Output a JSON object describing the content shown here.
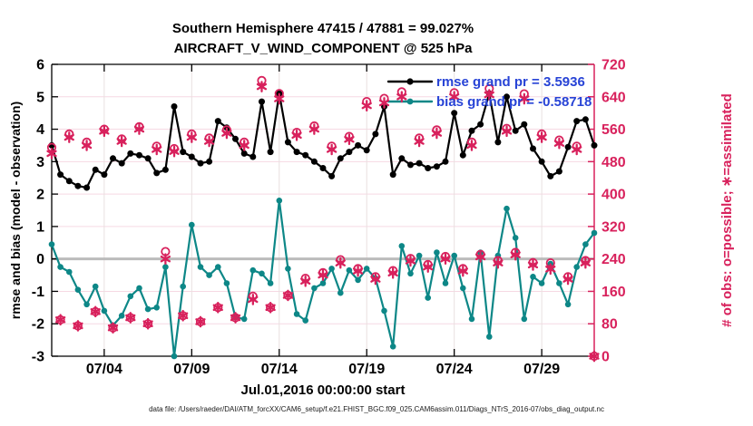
{
  "title": {
    "line1": "Southern Hemisphere 47415 / 47881 = 99.027%",
    "line2": "AIRCRAFT_V_WIND_COMPONENT @ 525 hPa"
  },
  "legend": {
    "rmse_label": "rmse grand pr = 3.5936",
    "bias_label": "bias grand pr = -0.58718"
  },
  "axes": {
    "ylabel_left": "rmse and bias (model - observation)",
    "ylabel_right": "# of obs: o=possible; ∗=assimilated",
    "xlabel": "Jul.01,2016 00:00:00 start"
  },
  "footer": "data file: /Users/raeder/DAI/ATM_forcXX/CAM6_setup/f.e21.FHIST_BGC.f09_025.CAM6assim.011/Diags_NTrS_2016-07/obs_diag_output.nc",
  "colors": {
    "rmse": "#000000",
    "bias": "#0d8787",
    "obs": "#d8215c",
    "legend_text": "#2743d6",
    "grid": "#f6d9e3",
    "grid_vertical": "#e9e0e0",
    "zero_line": "#bbbbbb",
    "axis_black": "#000000"
  },
  "chart_data": {
    "type": "line",
    "title": "Southern Hemisphere 47415 / 47881 = 99.027% | AIRCRAFT_V_WIND_COMPONENT @ 525 hPa",
    "xlabel": "Jul.01,2016 00:00:00 start",
    "ylabel_left": "rmse and bias (model - observation)",
    "ylabel_right": "# of obs: o=possible; *=assimilated",
    "xlim_days": [
      1,
      32
    ],
    "ylim_left": [
      -3,
      6
    ],
    "ylim_right": [
      0,
      720
    ],
    "yticks_left": [
      6,
      5,
      4,
      3,
      2,
      1,
      0,
      -1,
      -2,
      -3
    ],
    "yticks_right": [
      720,
      640,
      560,
      480,
      400,
      320,
      240,
      160,
      80,
      0
    ],
    "xticks": {
      "days": [
        4,
        9,
        14,
        19,
        24,
        29
      ],
      "labels": [
        "07/04",
        "07/09",
        "07/14",
        "07/19",
        "07/24",
        "07/29"
      ]
    },
    "grid": true,
    "legend_position": "top-right-inside",
    "x_day_of_july": [
      1,
      1.5,
      2,
      2.5,
      3,
      3.5,
      4,
      4.5,
      5,
      5.5,
      6,
      6.5,
      7,
      7.5,
      8,
      8.5,
      9,
      9.5,
      10,
      10.5,
      11,
      11.5,
      12,
      12.5,
      13,
      13.5,
      14,
      14.5,
      15,
      15.5,
      16,
      16.5,
      17,
      17.5,
      18,
      18.5,
      19,
      19.5,
      20,
      20.5,
      21,
      21.5,
      22,
      22.5,
      23,
      23.5,
      24,
      24.5,
      25,
      25.5,
      26,
      26.5,
      27,
      27.5,
      28,
      28.5,
      29,
      29.5,
      30,
      30.5,
      31,
      31.5,
      32
    ],
    "grand": {
      "rmse": 3.5936,
      "bias": -0.58718
    },
    "series": [
      {
        "name": "rmse",
        "axis": "left",
        "marker": "dot",
        "values": [
          3.5,
          2.6,
          2.4,
          2.25,
          2.2,
          2.75,
          2.6,
          3.1,
          2.95,
          3.25,
          3.2,
          3.1,
          2.65,
          2.75,
          4.7,
          3.3,
          3.15,
          2.95,
          3.0,
          4.25,
          4.05,
          3.7,
          3.25,
          3.15,
          4.85,
          3.3,
          5.1,
          3.6,
          3.3,
          3.2,
          3.0,
          2.8,
          2.55,
          3.1,
          3.3,
          3.5,
          3.35,
          3.85,
          4.7,
          2.6,
          3.1,
          2.9,
          2.95,
          2.8,
          2.85,
          3.0,
          4.5,
          3.2,
          3.95,
          4.15,
          5.1,
          3.6,
          5.0,
          3.95,
          4.15,
          3.4,
          3.0,
          2.55,
          2.7,
          3.45,
          4.25,
          4.3,
          3.5
        ]
      },
      {
        "name": "bias",
        "axis": "left",
        "marker": "dot",
        "values": [
          0.45,
          -0.25,
          -0.4,
          -0.95,
          -1.4,
          -0.85,
          -1.6,
          -2.05,
          -1.75,
          -1.15,
          -0.9,
          -1.55,
          -1.5,
          -0.25,
          -3.0,
          -0.85,
          1.05,
          -0.25,
          -0.5,
          -0.25,
          -0.75,
          -1.8,
          -1.85,
          -0.35,
          -0.45,
          -0.75,
          1.8,
          -0.3,
          -1.7,
          -1.9,
          -0.9,
          -0.75,
          -0.3,
          -1.05,
          -0.35,
          -0.65,
          -0.3,
          -0.6,
          -1.6,
          -2.7,
          0.4,
          -0.45,
          0.1,
          -1.2,
          0.2,
          -0.75,
          0.1,
          -0.9,
          -1.85,
          0.2,
          -2.4,
          0.1,
          1.55,
          0.65,
          -1.85,
          -0.55,
          -0.75,
          -0.15,
          -0.75,
          -1.4,
          -0.25,
          0.45,
          0.8
        ]
      },
      {
        "name": "possible",
        "axis": "right",
        "marker": "circle",
        "values": [
          515,
          90,
          548,
          75,
          528,
          110,
          560,
          70,
          536,
          95,
          566,
          80,
          518,
          258,
          512,
          100,
          548,
          85,
          538,
          120,
          558,
          95,
          528,
          148,
          680,
          120,
          648,
          150,
          552,
          192,
          568,
          206,
          518,
          238,
          542,
          216,
          628,
          196,
          636,
          211,
          652,
          241,
          538,
          226,
          558,
          246,
          650,
          216,
          528,
          251,
          660,
          236,
          562,
          256,
          647,
          231,
          548,
          230,
          533,
          196,
          518,
          236,
          0
        ]
      },
      {
        "name": "assimilated",
        "axis": "right",
        "marker": "asterisk",
        "values": [
          500,
          90,
          540,
          75,
          520,
          110,
          555,
          70,
          530,
          95,
          560,
          80,
          510,
          240,
          505,
          100,
          540,
          85,
          530,
          120,
          550,
          95,
          520,
          140,
          665,
          120,
          635,
          150,
          545,
          185,
          560,
          200,
          510,
          230,
          535,
          210,
          618,
          190,
          625,
          205,
          640,
          235,
          530,
          220,
          550,
          240,
          640,
          210,
          520,
          245,
          645,
          230,
          555,
          250,
          635,
          225,
          540,
          215,
          525,
          190,
          510,
          230,
          0
        ]
      }
    ]
  }
}
